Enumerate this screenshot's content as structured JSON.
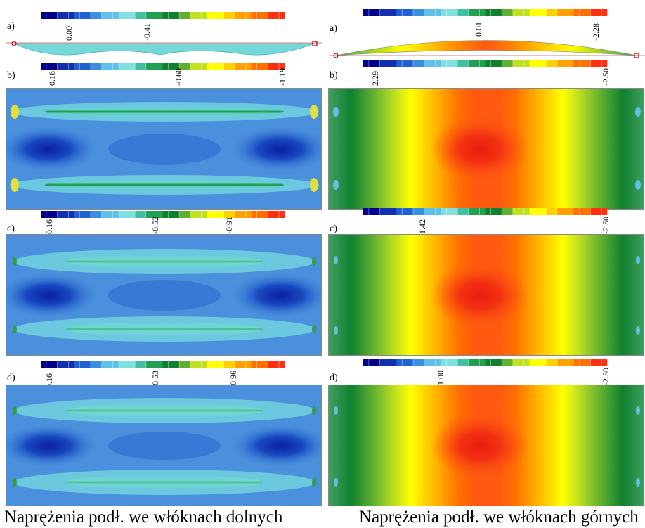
{
  "left": {
    "a": {
      "label": "a)",
      "ticks": [
        "0.00",
        "-0.41"
      ]
    },
    "b": {
      "label": "b)",
      "ticks": [
        "0.16",
        "-0.60",
        "-1.19"
      ]
    },
    "c": {
      "label": "c)",
      "ticks": [
        "0.16",
        "-0.52",
        "-0.91"
      ]
    },
    "d": {
      "label": "d)",
      "ticks": [
        "0.16",
        "-0.53",
        "-0.96"
      ]
    },
    "caption": "Naprężenia podł. we włóknach dolnych"
  },
  "right": {
    "a": {
      "label": "a)",
      "ticks": [
        "0.01",
        "-2.28"
      ]
    },
    "b": {
      "label": "b)",
      "ticks": [
        "2.29",
        "-2.50"
      ]
    },
    "c": {
      "label": "c)",
      "ticks": [
        "1.42",
        "-2.50"
      ]
    },
    "d": {
      "label": "d)",
      "ticks": [
        "1.00",
        "-2.50"
      ]
    },
    "caption": "Naprężenia podł. we włóknach górnych"
  },
  "colors": {
    "scale": [
      "#00008b",
      "#1030b0",
      "#2060d0",
      "#3a8fe0",
      "#60c0e8",
      "#80e0e0",
      "#40c0a0",
      "#20a050",
      "#108030",
      "#60b030",
      "#c0e020",
      "#ffff00",
      "#ffd000",
      "#ffa000",
      "#ff7000",
      "#ff3010"
    ],
    "bottom_bg": "#3a7fd8",
    "top_bg": "#ff4020"
  }
}
